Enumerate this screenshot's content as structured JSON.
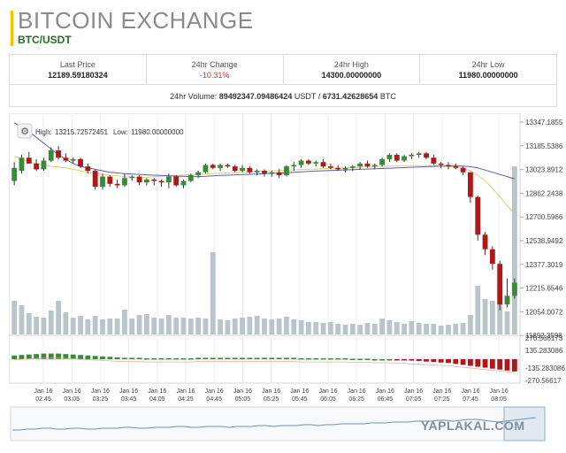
{
  "header": {
    "title": "BITCOIN EXCHANGE",
    "pair": "BTC/USDT"
  },
  "stats": [
    {
      "label": "Last Price",
      "value": "12189.59180324",
      "negative": false
    },
    {
      "label": "24hr Change",
      "value": "-10.31%",
      "negative": true
    },
    {
      "label": "24hr High",
      "value": "14300.00000000",
      "negative": false
    },
    {
      "label": "24hr Low",
      "value": "11980.00000000",
      "negative": false
    }
  ],
  "volume": {
    "label": "24hr Volume:",
    "usdt_value": "89492347.09486424",
    "usdt_unit": "USDT",
    "separator": "/",
    "btc_value": "6731.42628654",
    "btc_unit": "BTC"
  },
  "chart_legend": {
    "high_label": "High:",
    "high_value": "13215.72572451",
    "low_label": "Low:",
    "low_value": "11980.00000000"
  },
  "colors": {
    "up": "#3a8a3a",
    "down": "#b01818",
    "volume": "#b8c6c9",
    "ma_fast": "#5c5cb8",
    "ma_slow": "#d8d070",
    "accent": "#f5c200"
  },
  "icons": {
    "settings": "gear-icon"
  },
  "watermark": "YAPLAKAL.COM",
  "chart_data": {
    "type": "candlestick",
    "y_ticks": [
      "13347.1855",
      "13185.5386",
      "13023.8912",
      "12862.2438",
      "12700.5966",
      "12538.9492",
      "12377.3019",
      "12215.6546",
      "12054.0072",
      "11892.3598"
    ],
    "macd_ticks": [
      "270.566173",
      "135.283086",
      "-135.283086",
      "-270.56617"
    ],
    "x_labels": [
      {
        "date": "Jan 16",
        "time": "02:45"
      },
      {
        "date": "Jan 16",
        "time": "03:05"
      },
      {
        "date": "Jan 16",
        "time": "03:25"
      },
      {
        "date": "Jan 16",
        "time": "03:45"
      },
      {
        "date": "Jan 16",
        "time": "04:05"
      },
      {
        "date": "Jan 16",
        "time": "04:25"
      },
      {
        "date": "Jan 16",
        "time": "04:45"
      },
      {
        "date": "Jan 16",
        "time": "05:05"
      },
      {
        "date": "Jan 16",
        "time": "05:25"
      },
      {
        "date": "Jan 16",
        "time": "05:45"
      },
      {
        "date": "Jan 16",
        "time": "06:05"
      },
      {
        "date": "Jan 16",
        "time": "06:25"
      },
      {
        "date": "Jan 16",
        "time": "06:45"
      },
      {
        "date": "Jan 16",
        "time": "07:05"
      },
      {
        "date": "Jan 16",
        "time": "07:25"
      },
      {
        "date": "Jan 16",
        "time": "07:45"
      },
      {
        "date": "Jan 16",
        "time": "08:05"
      }
    ],
    "price_range": [
      11892.3598,
      13347.1855
    ],
    "candles": [
      {
        "o": 12930,
        "h": 13060,
        "l": 12900,
        "c": 13020
      },
      {
        "o": 13000,
        "h": 13110,
        "l": 12980,
        "c": 13090
      },
      {
        "o": 13090,
        "h": 13130,
        "l": 13060,
        "c": 13050
      },
      {
        "o": 13050,
        "h": 13080,
        "l": 13000,
        "c": 13010
      },
      {
        "o": 13010,
        "h": 13090,
        "l": 13000,
        "c": 13070
      },
      {
        "o": 13070,
        "h": 13160,
        "l": 13060,
        "c": 13140
      },
      {
        "o": 13140,
        "h": 13170,
        "l": 13080,
        "c": 13090
      },
      {
        "o": 13090,
        "h": 13120,
        "l": 13060,
        "c": 13070
      },
      {
        "o": 13070,
        "h": 13090,
        "l": 13050,
        "c": 13080
      },
      {
        "o": 13080,
        "h": 13090,
        "l": 13020,
        "c": 13030
      },
      {
        "o": 13030,
        "h": 13050,
        "l": 12980,
        "c": 13000
      },
      {
        "o": 13000,
        "h": 13010,
        "l": 12870,
        "c": 12890
      },
      {
        "o": 12890,
        "h": 12980,
        "l": 12870,
        "c": 12960
      },
      {
        "o": 12960,
        "h": 12970,
        "l": 12890,
        "c": 12910
      },
      {
        "o": 12910,
        "h": 12940,
        "l": 12880,
        "c": 12900
      },
      {
        "o": 12900,
        "h": 12980,
        "l": 12890,
        "c": 12950
      },
      {
        "o": 12950,
        "h": 12970,
        "l": 12930,
        "c": 12960
      },
      {
        "o": 12960,
        "h": 12970,
        "l": 12900,
        "c": 12920
      },
      {
        "o": 12920,
        "h": 12950,
        "l": 12900,
        "c": 12940
      },
      {
        "o": 12940,
        "h": 12950,
        "l": 12900,
        "c": 12930
      },
      {
        "o": 12930,
        "h": 12940,
        "l": 12890,
        "c": 12920
      },
      {
        "o": 12920,
        "h": 12980,
        "l": 12880,
        "c": 12960
      },
      {
        "o": 12960,
        "h": 12970,
        "l": 12890,
        "c": 12900
      },
      {
        "o": 12900,
        "h": 12940,
        "l": 12880,
        "c": 12930
      },
      {
        "o": 12930,
        "h": 12980,
        "l": 12920,
        "c": 12970
      },
      {
        "o": 12970,
        "h": 13000,
        "l": 12950,
        "c": 12990
      },
      {
        "o": 12990,
        "h": 13050,
        "l": 12980,
        "c": 13040
      },
      {
        "o": 13040,
        "h": 13050,
        "l": 13010,
        "c": 13020
      },
      {
        "o": 13020,
        "h": 13050,
        "l": 13000,
        "c": 13040
      },
      {
        "o": 13040,
        "h": 13050,
        "l": 13020,
        "c": 13030
      },
      {
        "o": 13030,
        "h": 13040,
        "l": 12990,
        "c": 13000
      },
      {
        "o": 13000,
        "h": 13040,
        "l": 12990,
        "c": 13020
      },
      {
        "o": 13020,
        "h": 13030,
        "l": 12980,
        "c": 12990
      },
      {
        "o": 12990,
        "h": 13010,
        "l": 12970,
        "c": 13000
      },
      {
        "o": 13000,
        "h": 13010,
        "l": 12960,
        "c": 12980
      },
      {
        "o": 12980,
        "h": 13000,
        "l": 12960,
        "c": 12990
      },
      {
        "o": 12990,
        "h": 13010,
        "l": 12950,
        "c": 12970
      },
      {
        "o": 12970,
        "h": 13040,
        "l": 12960,
        "c": 13030
      },
      {
        "o": 13030,
        "h": 13060,
        "l": 13000,
        "c": 13040
      },
      {
        "o": 13040,
        "h": 13080,
        "l": 13020,
        "c": 13070
      },
      {
        "o": 13070,
        "h": 13080,
        "l": 13040,
        "c": 13050
      },
      {
        "o": 13050,
        "h": 13070,
        "l": 13030,
        "c": 13060
      },
      {
        "o": 13060,
        "h": 13080,
        "l": 13020,
        "c": 13030
      },
      {
        "o": 13030,
        "h": 13050,
        "l": 13010,
        "c": 13020
      },
      {
        "o": 13020,
        "h": 13040,
        "l": 13000,
        "c": 13010
      },
      {
        "o": 13010,
        "h": 13030,
        "l": 12990,
        "c": 13020
      },
      {
        "o": 13020,
        "h": 13040,
        "l": 13000,
        "c": 13030
      },
      {
        "o": 13030,
        "h": 13060,
        "l": 13010,
        "c": 13050
      },
      {
        "o": 13050,
        "h": 13070,
        "l": 13020,
        "c": 13030
      },
      {
        "o": 13030,
        "h": 13050,
        "l": 13010,
        "c": 13040
      },
      {
        "o": 13040,
        "h": 13090,
        "l": 13030,
        "c": 13080
      },
      {
        "o": 13080,
        "h": 13120,
        "l": 13060,
        "c": 13110
      },
      {
        "o": 13110,
        "h": 13120,
        "l": 13060,
        "c": 13070
      },
      {
        "o": 13070,
        "h": 13110,
        "l": 13060,
        "c": 13100
      },
      {
        "o": 13100,
        "h": 13120,
        "l": 13080,
        "c": 13110
      },
      {
        "o": 13110,
        "h": 13130,
        "l": 13090,
        "c": 13120
      },
      {
        "o": 13120,
        "h": 13130,
        "l": 13080,
        "c": 13090
      },
      {
        "o": 13090,
        "h": 13110,
        "l": 13040,
        "c": 13050
      },
      {
        "o": 13050,
        "h": 13060,
        "l": 13020,
        "c": 13040
      },
      {
        "o": 13040,
        "h": 13060,
        "l": 13010,
        "c": 13030
      },
      {
        "o": 13030,
        "h": 13050,
        "l": 13010,
        "c": 13020
      },
      {
        "o": 13020,
        "h": 13030,
        "l": 12970,
        "c": 12990
      },
      {
        "o": 12990,
        "h": 12990,
        "l": 12780,
        "c": 12820
      },
      {
        "o": 12820,
        "h": 12830,
        "l": 12520,
        "c": 12560
      },
      {
        "o": 12560,
        "h": 12580,
        "l": 12420,
        "c": 12460
      },
      {
        "o": 12460,
        "h": 12480,
        "l": 12320,
        "c": 12360
      },
      {
        "o": 12360,
        "h": 12380,
        "l": 12040,
        "c": 12080
      },
      {
        "o": 12080,
        "h": 12260,
        "l": 12060,
        "c": 12140
      },
      {
        "o": 12140,
        "h": 12260,
        "l": 12120,
        "c": 12230
      }
    ],
    "volumes": [
      38,
      33,
      24,
      20,
      19,
      27,
      38,
      25,
      19,
      21,
      17,
      21,
      17,
      18,
      18,
      28,
      18,
      22,
      23,
      19,
      18,
      22,
      19,
      19,
      18,
      19,
      18,
      19,
      17,
      16,
      18,
      19,
      20,
      21,
      18,
      17,
      18,
      20,
      17,
      16,
      14,
      14,
      13,
      14,
      12,
      11,
      12,
      11,
      13,
      12,
      18,
      16,
      14,
      12,
      15,
      13,
      12,
      12,
      10,
      11,
      12,
      13,
      22,
      55,
      40,
      38,
      52,
      26,
      56,
      40,
      20
    ],
    "volume_highlights": [
      {
        "i": 27,
        "v": 93
      },
      {
        "i": 68,
        "v": 190
      },
      {
        "i": 70,
        "v": 112
      }
    ],
    "ma_fast": [
      13330,
      13300,
      13270,
      13230,
      13190,
      13150,
      13110,
      13080,
      13050,
      13030,
      13020,
      13010,
      13000,
      12990,
      12985,
      12980,
      12978,
      12975,
      12972,
      12970,
      12968,
      12965,
      12963,
      12962,
      12960,
      12960,
      12962,
      12965,
      12968,
      12970,
      12972,
      12974,
      12976,
      12978,
      12980,
      12982,
      12984,
      12986,
      12990,
      12993,
      12996,
      12998,
      13000,
      13002,
      13004,
      13006,
      13008,
      13010,
      13012,
      13014,
      13016,
      13018,
      13020,
      13022,
      13024,
      13026,
      13028,
      13030,
      13032,
      13034,
      13035,
      13032,
      13028,
      13020,
      13005,
      12990,
      12975,
      12960,
      12945,
      12930,
      12915
    ],
    "ma_slow": [
      13100,
      13080,
      13060,
      13050,
      13040,
      13030,
      13025,
      13020,
      13010,
      13000,
      12990,
      12980,
      12975,
      12970,
      12965,
      12960,
      12955,
      12955,
      12955,
      12960,
      12962,
      12965,
      12968,
      12970,
      12972,
      12975,
      12978,
      12980,
      12983,
      12985,
      12988,
      12990,
      12992,
      12995,
      12998,
      13000,
      13002,
      13004,
      13006,
      13008,
      13010,
      13012,
      13014,
      13016,
      13018,
      13020,
      13022,
      13024,
      13026,
      13028,
      13030,
      13032,
      13034,
      13036,
      13036,
      13036,
      13036,
      13034,
      13032,
      13030,
      13028,
      13020,
      13000,
      12970,
      12930,
      12880,
      12820,
      12760,
      12710,
      12670,
      12640
    ],
    "macd": [
      8,
      9,
      10,
      11,
      12,
      12,
      12,
      11,
      10,
      9,
      8,
      7,
      6,
      5,
      4,
      3,
      3,
      3,
      2,
      2,
      2,
      2,
      2,
      2,
      2,
      3,
      3,
      3,
      3,
      3,
      3,
      3,
      3,
      3,
      3,
      3,
      3,
      3,
      3,
      2,
      2,
      2,
      2,
      2,
      2,
      2,
      1,
      1,
      1,
      0,
      0,
      0,
      -1,
      -2,
      -3,
      -4,
      -5,
      -6,
      -7,
      -8,
      -10,
      -12,
      -14,
      -16,
      -18,
      -20,
      -22,
      -24,
      -26,
      -27,
      -28
    ],
    "macd_range": [
      -270.56617,
      270.566173
    ],
    "navigator": [
      10,
      10,
      11,
      11,
      12,
      12,
      11,
      11,
      12,
      12,
      11,
      11,
      12,
      12,
      12,
      13,
      13,
      12,
      12,
      13,
      13,
      13,
      14,
      14,
      13,
      13,
      14,
      14,
      14,
      13,
      14,
      14,
      14,
      15,
      15,
      14,
      15,
      15,
      15,
      16,
      16,
      15,
      16,
      16,
      17,
      17,
      17,
      17,
      18,
      18,
      18,
      19,
      19,
      19,
      20,
      20,
      20,
      21,
      21,
      20,
      21,
      22,
      22,
      21,
      20,
      19,
      20,
      21,
      22,
      23,
      24
    ]
  }
}
